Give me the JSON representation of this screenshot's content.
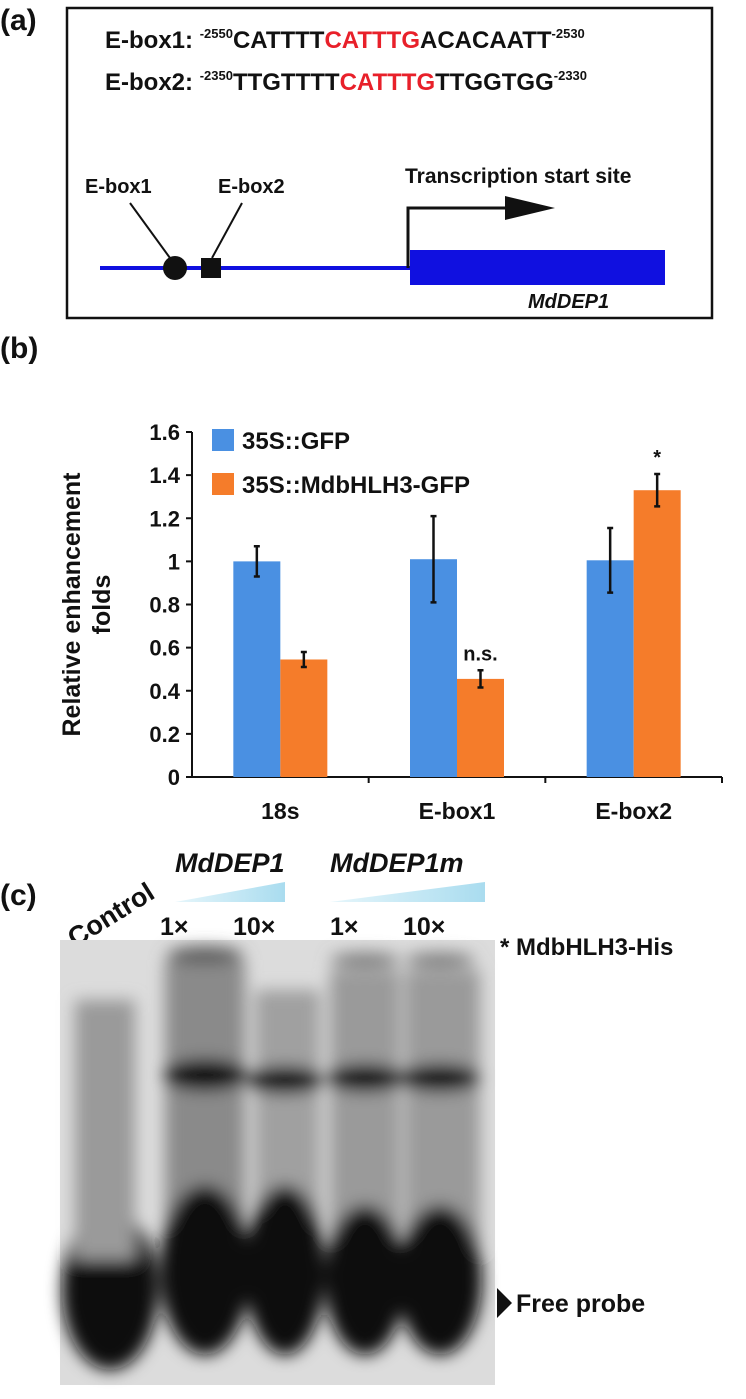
{
  "panel_a": {
    "label": "(a)",
    "ebox1": {
      "name": "E-box1:",
      "start": "-2550",
      "left": "CATTTT",
      "motif": "CATTTG",
      "right": "ACACAATT",
      "end": "-2530"
    },
    "ebox2": {
      "name": "E-box2:",
      "start": "-2350",
      "left": "TTGTTTT",
      "motif": "CATTTG",
      "right": "TTGGTGG",
      "end": "-2330"
    },
    "diagram": {
      "ebox1": "E-box1",
      "ebox2": "E-box2",
      "tss": "Transcription start site",
      "gene": "MdDEP1"
    }
  },
  "chart_data": {
    "type": "bar",
    "label": "(b)",
    "ylabel": [
      "Relative enhancement",
      "folds"
    ],
    "categories": [
      "18s",
      "E-box1",
      "E-box2"
    ],
    "series": [
      {
        "name": "35S::GFP",
        "color": "#4a90e2",
        "values": [
          1,
          1.01,
          1.005
        ],
        "errors": [
          0.07,
          0.2,
          0.15
        ]
      },
      {
        "name": "35S::MdbHLH3-GFP",
        "color": "#f57c2a",
        "values": [
          0.545,
          0.455,
          1.33
        ],
        "errors": [
          0.035,
          0.04,
          0.075
        ]
      }
    ],
    "annotations": [
      null,
      "n.s.",
      "*"
    ],
    "ylim": [
      0,
      1.6
    ],
    "yticks": [
      0,
      0.2,
      0.4,
      0.6,
      0.8,
      1,
      1.2,
      1.4,
      1.6
    ],
    "legend": "upper left"
  },
  "panel_c": {
    "label": "(c)",
    "control": "Control",
    "competitor1": "MdDEP1",
    "competitor2": "MdDEP1m",
    "doses": [
      "1×",
      "10×",
      "1×",
      "10×"
    ],
    "complex": "* MdbHLH3-His",
    "free": "Free probe"
  }
}
